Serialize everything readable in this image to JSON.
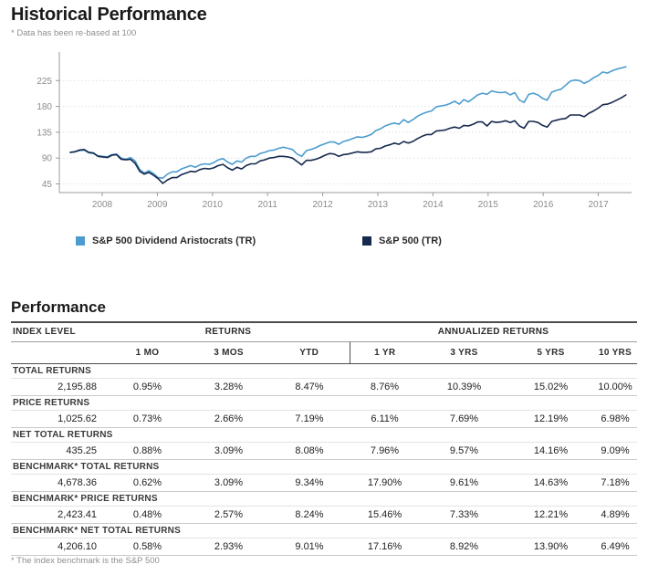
{
  "page": {
    "title": "Historical Performance",
    "subtitle": "* Data has been re-based at 100"
  },
  "chart": {
    "legend": [
      {
        "label": "S&P 500 Dividend Aristocrats (TR)",
        "color": "#4C9CCE"
      },
      {
        "label": "S&P 500 (TR)",
        "color": "#16294E"
      }
    ],
    "colors": {
      "gridline": "#dedede",
      "axis": "#9b9b9b",
      "tick_text": "#8b8b8b"
    }
  },
  "chart_data": {
    "type": "line",
    "title": "Historical Performance",
    "note": "* Data has been re-based at 100",
    "x_start": 2007.42,
    "x_end": 2017.5,
    "x_ticks": [
      "2008",
      "2009",
      "2010",
      "2011",
      "2012",
      "2013",
      "2014",
      "2015",
      "2016",
      "2017"
    ],
    "y_ticks": [
      45,
      90,
      135,
      180,
      225
    ],
    "ylim": [
      32,
      272
    ],
    "grid": "dotted-horizontal",
    "legend_position": "bottom",
    "series": [
      {
        "name": "S&P 500 Dividend Aristocrats (TR)",
        "color": "#4C9CCE",
        "values": [
          100,
          101,
          103,
          104,
          99,
          98,
          94,
          93,
          92,
          96,
          97,
          90,
          88,
          91,
          85,
          70,
          64,
          68,
          63,
          56,
          55,
          62,
          66,
          66,
          71,
          74,
          77,
          74,
          78,
          80,
          79,
          82,
          87,
          89,
          83,
          79,
          85,
          83,
          90,
          93,
          93,
          98,
          100,
          103,
          104,
          107,
          109,
          107,
          105,
          97,
          93,
          103,
          105,
          108,
          112,
          115,
          118,
          118,
          114,
          119,
          121,
          124,
          127,
          126,
          128,
          131,
          138,
          141,
          146,
          149,
          151,
          149,
          157,
          152,
          157,
          163,
          167,
          170,
          172,
          179,
          181,
          182,
          185,
          189,
          184,
          192,
          188,
          194,
          200,
          203,
          201,
          207,
          205,
          204,
          205,
          200,
          204,
          191,
          187,
          201,
          203,
          200,
          194,
          191,
          205,
          208,
          210,
          217,
          224,
          226,
          225,
          220,
          224,
          230,
          234,
          240,
          238,
          242,
          245,
          247,
          249
        ]
      },
      {
        "name": "S&P 500 (TR)",
        "color": "#16294E",
        "values": [
          100,
          101,
          104,
          105,
          100,
          99,
          93,
          92,
          91,
          95,
          96,
          88,
          87,
          88,
          81,
          67,
          62,
          65,
          60,
          54,
          46,
          52,
          56,
          56,
          61,
          64,
          67,
          66,
          70,
          72,
          71,
          73,
          77,
          79,
          73,
          69,
          74,
          71,
          77,
          80,
          80,
          85,
          87,
          90,
          91,
          93,
          93,
          92,
          90,
          84,
          78,
          86,
          86,
          88,
          91,
          95,
          98,
          97,
          93,
          96,
          97,
          99,
          101,
          100,
          100,
          101,
          106,
          107,
          111,
          113,
          116,
          114,
          119,
          116,
          119,
          124,
          128,
          131,
          131,
          137,
          138,
          139,
          142,
          144,
          142,
          147,
          146,
          149,
          153,
          153,
          146,
          154,
          152,
          153,
          155,
          152,
          155,
          146,
          142,
          154,
          154,
          152,
          147,
          144,
          154,
          156,
          158,
          159,
          165,
          165,
          165,
          162,
          168,
          172,
          177,
          183,
          184,
          187,
          191,
          195,
          200
        ]
      }
    ]
  },
  "performance": {
    "heading": "Performance",
    "table": {
      "group_headers": [
        "INDEX LEVEL",
        "RETURNS",
        "ANNUALIZED RETURNS"
      ],
      "column_headers": [
        "1 MO",
        "3 MOS",
        "YTD",
        "1 YR",
        "3 YRS",
        "5 YRS",
        "10 YRS"
      ],
      "rows": [
        {
          "label": "TOTAL RETURNS",
          "index_level": "2,195.88",
          "values": [
            "0.95%",
            "3.28%",
            "8.47%",
            "8.76%",
            "10.39%",
            "15.02%",
            "10.00%"
          ]
        },
        {
          "label": "PRICE RETURNS",
          "index_level": "1,025.62",
          "values": [
            "0.73%",
            "2.66%",
            "7.19%",
            "6.11%",
            "7.69%",
            "12.19%",
            "6.98%"
          ]
        },
        {
          "label": "NET TOTAL RETURNS",
          "index_level": "435.25",
          "values": [
            "0.88%",
            "3.09%",
            "8.08%",
            "7.96%",
            "9.57%",
            "14.16%",
            "9.09%"
          ]
        },
        {
          "label": "BENCHMARK* TOTAL RETURNS",
          "index_level": "4,678.36",
          "values": [
            "0.62%",
            "3.09%",
            "9.34%",
            "17.90%",
            "9.61%",
            "14.63%",
            "7.18%"
          ]
        },
        {
          "label": "BENCHMARK* PRICE RETURNS",
          "index_level": "2,423.41",
          "values": [
            "0.48%",
            "2.57%",
            "8.24%",
            "15.46%",
            "7.33%",
            "12.21%",
            "4.89%"
          ]
        },
        {
          "label": "BENCHMARK* NET TOTAL RETURNS",
          "index_level": "4,206.10",
          "values": [
            "0.58%",
            "2.93%",
            "9.01%",
            "17.16%",
            "8.92%",
            "13.90%",
            "6.49%"
          ]
        }
      ],
      "footnote": "* The index benchmark is the S&P 500"
    }
  }
}
